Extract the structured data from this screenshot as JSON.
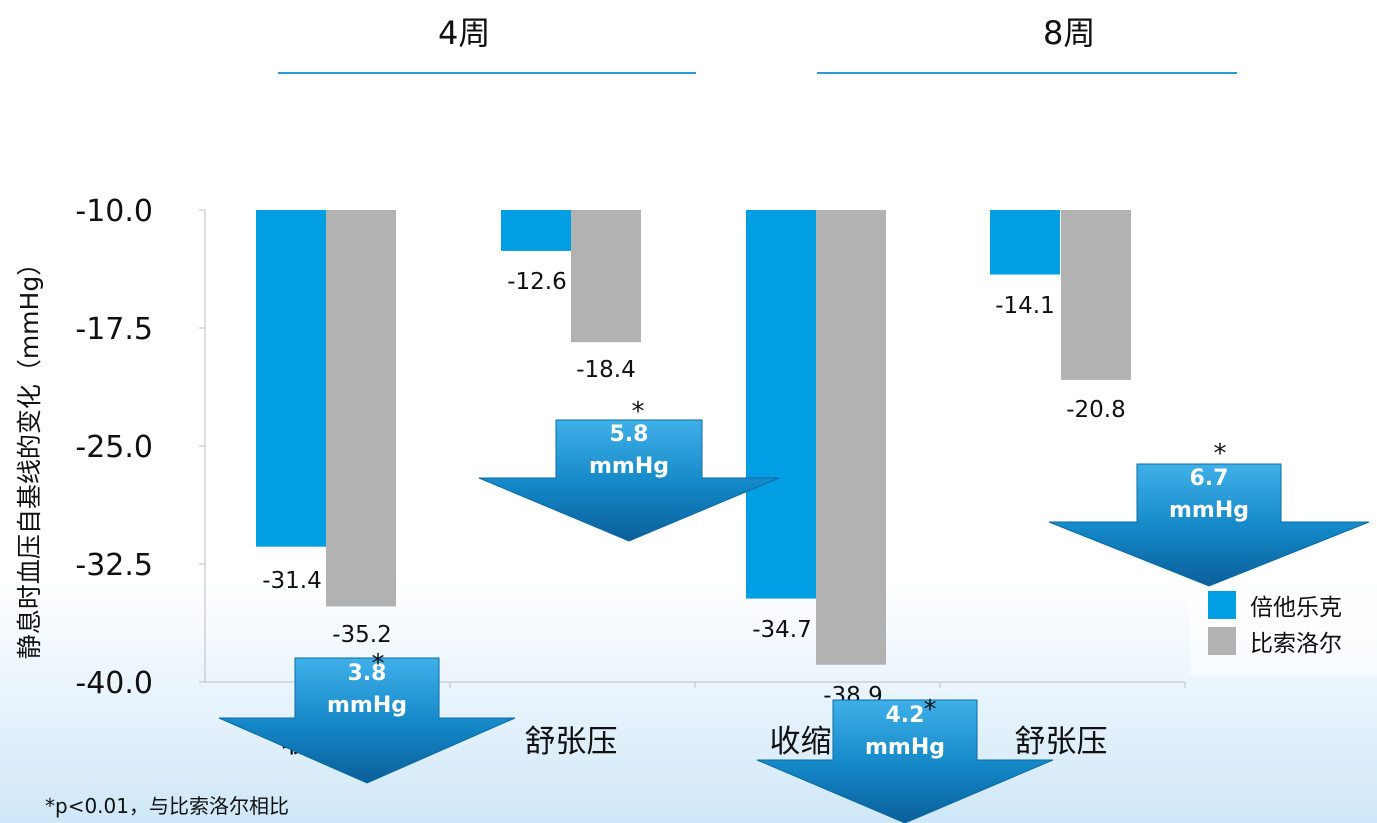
{
  "headers": {
    "left": "4周",
    "right": "8周"
  },
  "footnote": "*p<0.01，与比索洛尔相比",
  "legend": [
    {
      "name": "倍他乐克",
      "color": "#009fe3"
    },
    {
      "name": "比索洛尔",
      "color": "#b2b2b2"
    }
  ],
  "chart_data": {
    "type": "bar",
    "ylabel": "静息时血压自基线的变化（mmHg）",
    "yticks": [
      "-10.0",
      "-17.5",
      "-25.0",
      "-32.5",
      "-40.0"
    ],
    "ylim": [
      -40.0,
      -10.0
    ],
    "categories": [
      "收缩压",
      "舒张压",
      "收缩压",
      "舒张压"
    ],
    "series": [
      {
        "name": "倍他乐克",
        "color": "#009fe3",
        "values": [
          -31.4,
          -12.6,
          -34.7,
          -14.1
        ],
        "labels": [
          "-31.4",
          "-12.6",
          "-34.7",
          "-14.1"
        ]
      },
      {
        "name": "比索洛尔",
        "color": "#b2b2b2",
        "values": [
          -35.2,
          -18.4,
          -38.9,
          -20.8
        ],
        "labels": [
          "-35.2",
          "-18.4",
          "-38.9",
          "-20.8"
        ]
      }
    ],
    "annotations": [
      {
        "category": 0,
        "mark": "*",
        "text": "3.8\nmmHg"
      },
      {
        "category": 1,
        "mark": "*",
        "text": "5.8\nmmHg"
      },
      {
        "category": 2,
        "mark": "*",
        "text": "4.2\nmmHg"
      },
      {
        "category": 3,
        "mark": "*",
        "text": "6.7\nmmHg"
      }
    ],
    "grid": false,
    "legend_position": "right"
  }
}
